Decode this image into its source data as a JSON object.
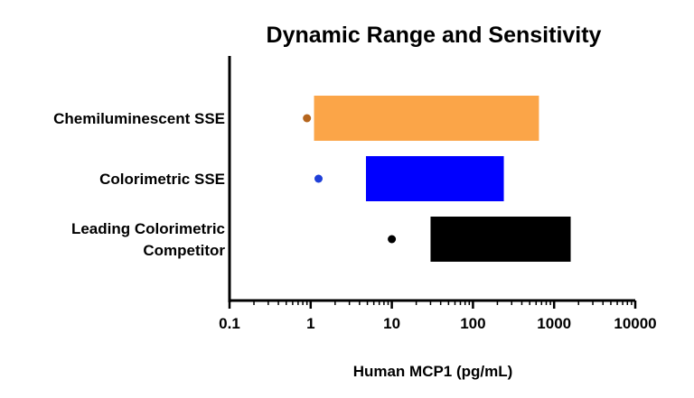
{
  "chart_data": {
    "type": "bar",
    "title": "Dynamic Range and Sensitivity",
    "xlabel": "Human MCP1 (pg/mL)",
    "ylabel": "",
    "x_scale": "log",
    "xlim": [
      0.1,
      10000
    ],
    "x_ticks": [
      "0.1",
      "1",
      "10",
      "100",
      "1000",
      "10000"
    ],
    "categories": [
      [
        "Chemiluminescent SSE"
      ],
      [
        "Colorimetric SSE"
      ],
      [
        "Leading Colorimetric",
        "Competitor"
      ]
    ],
    "series": [
      {
        "values": [
          {
            "range": [
              1.1,
              650
            ],
            "sensitivity": 0.9,
            "bar_color": "#FBA548",
            "dot_color": "#B5651D"
          },
          {
            "range": [
              4.8,
              240
            ],
            "sensitivity": 1.25,
            "bar_color": "#0000FF",
            "dot_color": "#1F3FD8"
          },
          {
            "range": [
              30,
              1600
            ],
            "sensitivity": 10,
            "bar_color": "#000000",
            "dot_color": "#000000"
          }
        ]
      }
    ],
    "grid": false,
    "legend": "none"
  }
}
